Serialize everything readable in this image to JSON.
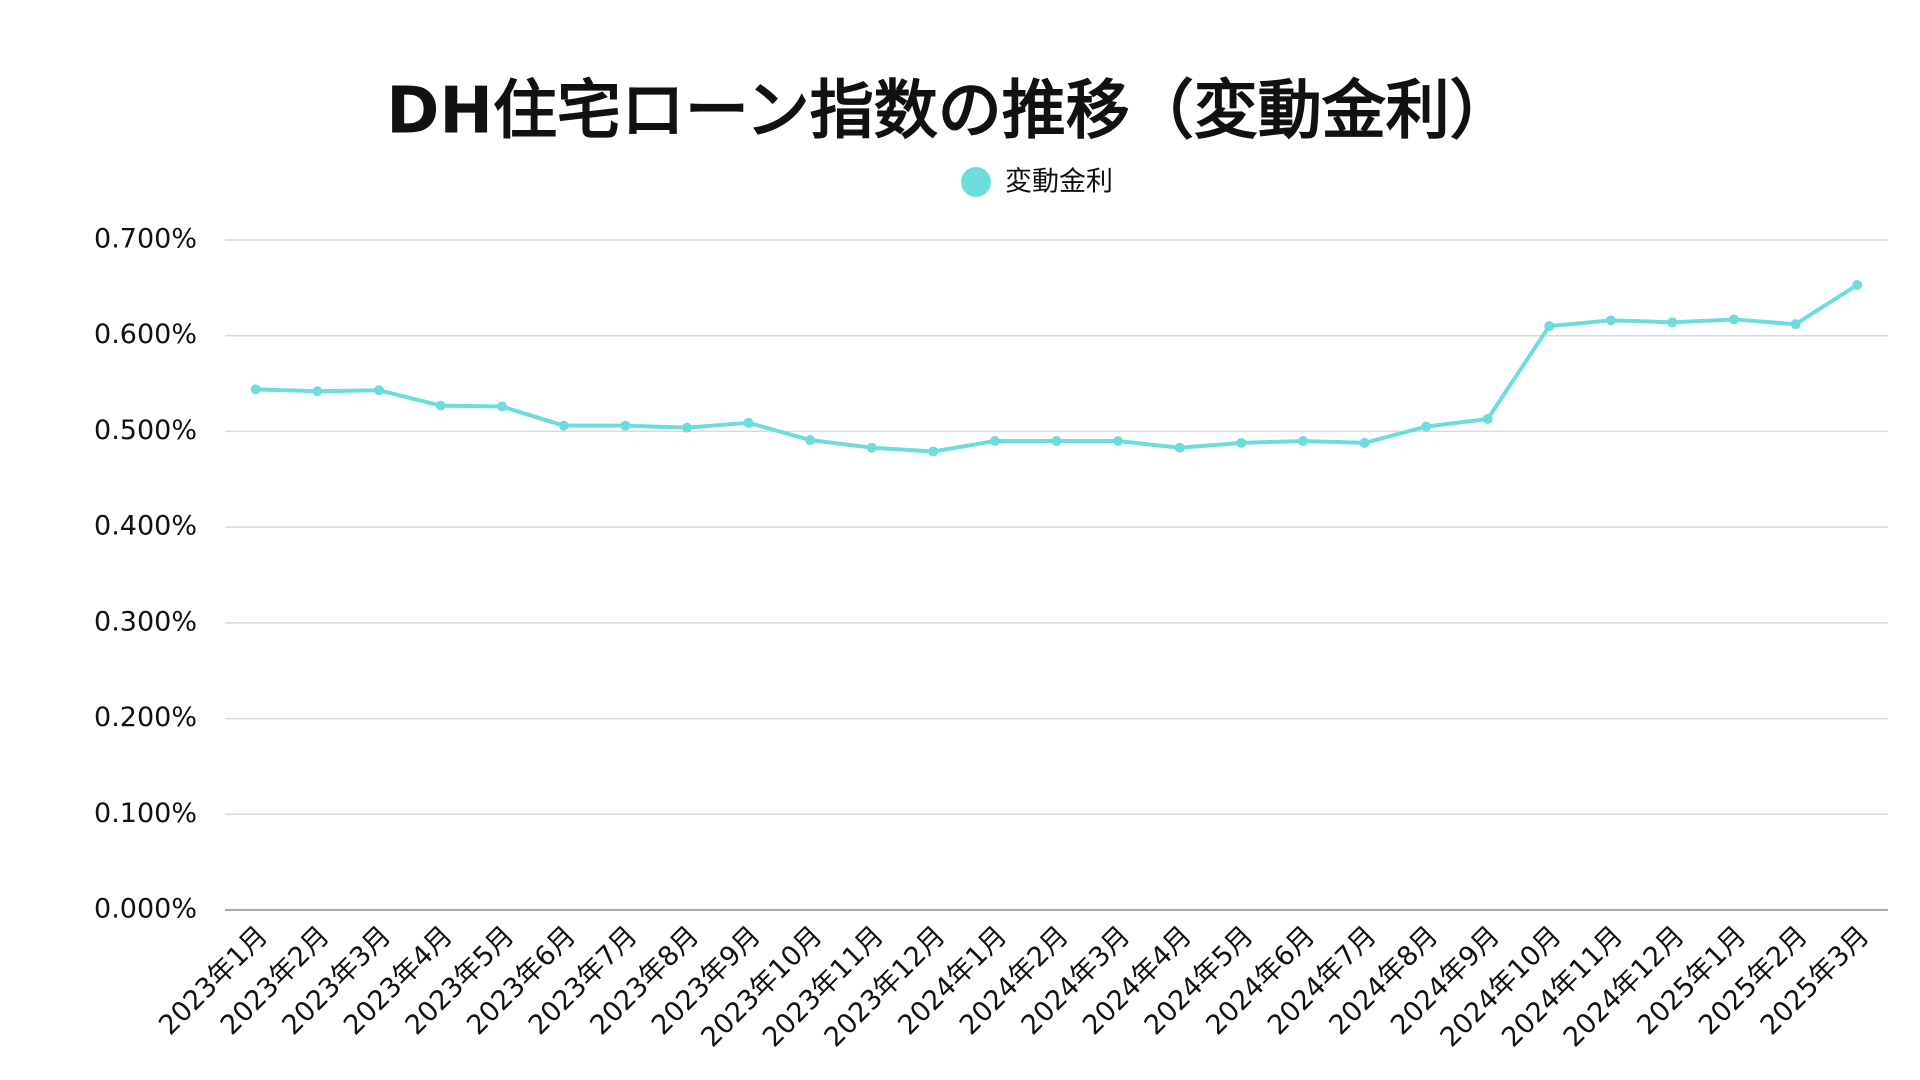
{
  "chart_data": {
    "type": "line",
    "title": "DH住宅ローン指数の推移（変動金利）",
    "categories": [
      "2023年1月",
      "2023年2月",
      "2023年3月",
      "2023年4月",
      "2023年5月",
      "2023年6月",
      "2023年7月",
      "2023年8月",
      "2023年9月",
      "2023年10月",
      "2023年11月",
      "2023年12月",
      "2024年1月",
      "2024年2月",
      "2024年3月",
      "2024年4月",
      "2024年5月",
      "2024年6月",
      "2024年7月",
      "2024年8月",
      "2024年9月",
      "2024年10月",
      "2024年11月",
      "2024年12月",
      "2025年1月",
      "2025年2月",
      "2025年3月"
    ],
    "series": [
      {
        "name": "変動金利",
        "color": "#6fdcdc",
        "values": [
          0.544,
          0.542,
          0.543,
          0.527,
          0.526,
          0.506,
          0.506,
          0.504,
          0.509,
          0.491,
          0.483,
          0.479,
          0.49,
          0.49,
          0.49,
          0.483,
          0.488,
          0.49,
          0.488,
          0.505,
          0.513,
          0.61,
          0.616,
          0.614,
          0.617,
          0.612,
          0.653
        ]
      }
    ],
    "ylim": [
      0,
      0.7
    ],
    "yticks": [
      {
        "value": 0,
        "label": "0.000%"
      },
      {
        "value": 0.1,
        "label": "0.100%"
      },
      {
        "value": 0.2,
        "label": "0.200%"
      },
      {
        "value": 0.3,
        "label": "0.300%"
      },
      {
        "value": 0.4,
        "label": "0.400%"
      },
      {
        "value": 0.5,
        "label": "0.500%"
      },
      {
        "value": 0.6,
        "label": "0.600%"
      },
      {
        "value": 0.7,
        "label": "0.700%"
      }
    ],
    "grid": true,
    "legend": "top"
  }
}
